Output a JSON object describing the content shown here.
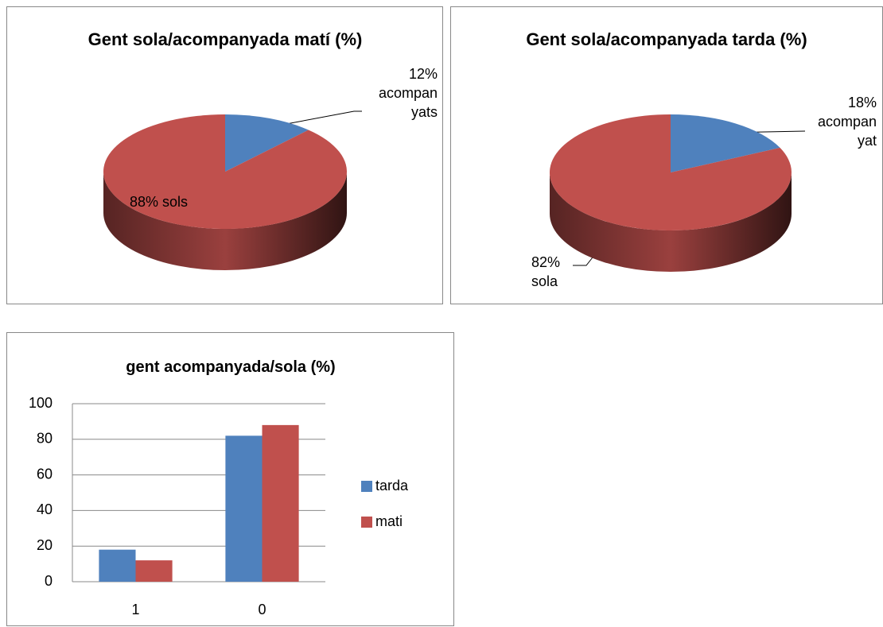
{
  "chart_data": [
    {
      "type": "pie",
      "title": "Gent sola/acompanyada matí (%)",
      "values": [
        12,
        88
      ],
      "value_labels": [
        "12% acompanyats",
        "88% sols"
      ],
      "colors": [
        "#4f81bd",
        "#c0504d"
      ]
    },
    {
      "type": "pie",
      "title": "Gent sola/acompanyada tarda (%)",
      "values": [
        18,
        82
      ],
      "value_labels": [
        "18% acompanyat",
        "82% sola"
      ],
      "colors": [
        "#4f81bd",
        "#c0504d"
      ]
    },
    {
      "type": "bar",
      "title": "gent acompanyada/sola (%)",
      "categories": [
        "1",
        "0"
      ],
      "series": [
        {
          "name": "tarda",
          "color": "#4f81bd",
          "values": [
            18,
            82
          ]
        },
        {
          "name": "mati",
          "color": "#c0504d",
          "values": [
            12,
            88
          ]
        }
      ],
      "ylim": [
        0,
        100
      ],
      "yticks": [
        0,
        20,
        40,
        60,
        80,
        100
      ],
      "grid": true,
      "legend": "right"
    }
  ]
}
